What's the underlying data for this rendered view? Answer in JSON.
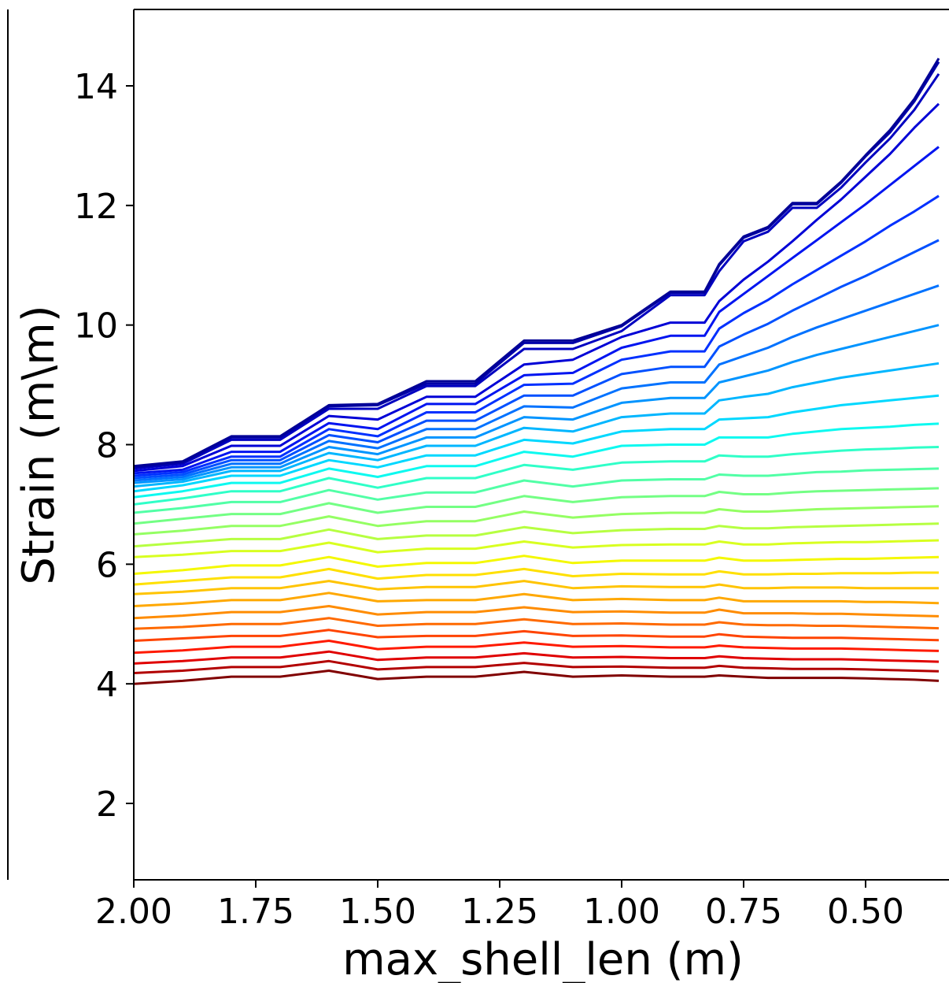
{
  "chart_data": {
    "type": "line",
    "title": "",
    "xlabel": "max_shell_len (m)",
    "ylabel": "Strain (m\\m)",
    "x_inverted": true,
    "xlim": [
      2.0,
      0.33
    ],
    "ylim": [
      0.85,
      15.3
    ],
    "xticks": [
      2.0,
      1.75,
      1.5,
      1.25,
      1.0,
      0.75,
      0.5
    ],
    "xtick_labels": [
      "2.00",
      "1.75",
      "1.50",
      "1.25",
      "1.00",
      "0.75",
      "0.50"
    ],
    "yticks": [
      2,
      4,
      6,
      8,
      10,
      12,
      14
    ],
    "ytick_labels": [
      "2",
      "4",
      "6",
      "8",
      "10",
      "12",
      "14"
    ],
    "grid": false,
    "legend": "none",
    "colormap": "jet",
    "x": [
      2.0,
      1.9,
      1.8,
      1.7,
      1.6,
      1.5,
      1.4,
      1.3,
      1.2,
      1.1,
      1.0,
      0.9,
      0.83,
      0.8,
      0.75,
      0.7,
      0.65,
      0.6,
      0.55,
      0.5,
      0.45,
      0.4,
      0.35
    ],
    "series": [
      {
        "color": "#800000",
        "values": [
          4.0,
          4.05,
          4.12,
          4.12,
          4.22,
          4.08,
          4.12,
          4.12,
          4.2,
          4.12,
          4.14,
          4.12,
          4.12,
          4.14,
          4.12,
          4.1,
          4.1,
          4.1,
          4.1,
          4.09,
          4.08,
          4.07,
          4.05
        ]
      },
      {
        "color": "#b20000",
        "values": [
          4.18,
          4.22,
          4.28,
          4.28,
          4.38,
          4.24,
          4.28,
          4.28,
          4.35,
          4.28,
          4.29,
          4.27,
          4.27,
          4.3,
          4.27,
          4.26,
          4.25,
          4.25,
          4.25,
          4.24,
          4.23,
          4.22,
          4.21
        ]
      },
      {
        "color": "#e00000",
        "values": [
          4.34,
          4.38,
          4.44,
          4.44,
          4.54,
          4.4,
          4.44,
          4.44,
          4.51,
          4.44,
          4.45,
          4.43,
          4.43,
          4.46,
          4.43,
          4.42,
          4.41,
          4.41,
          4.41,
          4.4,
          4.39,
          4.38,
          4.37
        ]
      },
      {
        "color": "#ff1a00",
        "values": [
          4.52,
          4.56,
          4.62,
          4.62,
          4.72,
          4.58,
          4.62,
          4.62,
          4.69,
          4.62,
          4.63,
          4.61,
          4.61,
          4.64,
          4.61,
          4.6,
          4.59,
          4.59,
          4.59,
          4.58,
          4.57,
          4.56,
          4.55
        ]
      },
      {
        "color": "#ff4400",
        "values": [
          4.72,
          4.76,
          4.8,
          4.8,
          4.9,
          4.78,
          4.8,
          4.8,
          4.88,
          4.8,
          4.81,
          4.79,
          4.79,
          4.83,
          4.79,
          4.78,
          4.77,
          4.77,
          4.77,
          4.76,
          4.75,
          4.74,
          4.73
        ]
      },
      {
        "color": "#ff6a00",
        "values": [
          4.92,
          4.95,
          5.0,
          5.0,
          5.1,
          4.97,
          5.0,
          5.0,
          5.08,
          5.0,
          5.01,
          4.99,
          4.99,
          5.03,
          4.99,
          4.98,
          4.98,
          4.97,
          4.97,
          4.96,
          4.95,
          4.94,
          4.93
        ]
      },
      {
        "color": "#ff8c00",
        "values": [
          5.1,
          5.14,
          5.2,
          5.2,
          5.3,
          5.16,
          5.2,
          5.2,
          5.28,
          5.2,
          5.21,
          5.19,
          5.19,
          5.24,
          5.18,
          5.18,
          5.18,
          5.17,
          5.17,
          5.16,
          5.15,
          5.14,
          5.13
        ]
      },
      {
        "color": "#ffa800",
        "values": [
          5.3,
          5.34,
          5.4,
          5.4,
          5.52,
          5.38,
          5.4,
          5.4,
          5.5,
          5.4,
          5.42,
          5.4,
          5.4,
          5.44,
          5.38,
          5.38,
          5.38,
          5.38,
          5.38,
          5.37,
          5.37,
          5.36,
          5.35
        ]
      },
      {
        "color": "#ffc400",
        "values": [
          5.5,
          5.54,
          5.6,
          5.6,
          5.72,
          5.58,
          5.62,
          5.62,
          5.72,
          5.6,
          5.63,
          5.62,
          5.62,
          5.66,
          5.6,
          5.6,
          5.61,
          5.61,
          5.61,
          5.6,
          5.6,
          5.6,
          5.6
        ]
      },
      {
        "color": "#ffe000",
        "values": [
          5.66,
          5.72,
          5.78,
          5.78,
          5.92,
          5.76,
          5.82,
          5.82,
          5.92,
          5.8,
          5.84,
          5.83,
          5.83,
          5.88,
          5.83,
          5.83,
          5.84,
          5.84,
          5.85,
          5.85,
          5.85,
          5.86,
          5.86
        ]
      },
      {
        "color": "#f4f800",
        "values": [
          5.84,
          5.9,
          5.98,
          5.98,
          6.12,
          5.96,
          6.02,
          6.02,
          6.14,
          6.02,
          6.06,
          6.06,
          6.06,
          6.11,
          6.06,
          6.06,
          6.07,
          6.08,
          6.09,
          6.09,
          6.1,
          6.11,
          6.12
        ]
      },
      {
        "color": "#d8ff20",
        "values": [
          6.12,
          6.16,
          6.22,
          6.22,
          6.36,
          6.2,
          6.26,
          6.26,
          6.38,
          6.28,
          6.32,
          6.33,
          6.33,
          6.38,
          6.33,
          6.33,
          6.35,
          6.36,
          6.37,
          6.37,
          6.38,
          6.39,
          6.4
        ]
      },
      {
        "color": "#b6ff41",
        "values": [
          6.3,
          6.36,
          6.42,
          6.42,
          6.58,
          6.42,
          6.48,
          6.48,
          6.62,
          6.52,
          6.57,
          6.59,
          6.59,
          6.64,
          6.6,
          6.6,
          6.62,
          6.63,
          6.64,
          6.65,
          6.66,
          6.67,
          6.68
        ]
      },
      {
        "color": "#94ff63",
        "values": [
          6.5,
          6.56,
          6.64,
          6.64,
          6.8,
          6.64,
          6.72,
          6.72,
          6.88,
          6.78,
          6.84,
          6.86,
          6.86,
          6.92,
          6.88,
          6.88,
          6.9,
          6.92,
          6.93,
          6.94,
          6.95,
          6.96,
          6.97
        ]
      },
      {
        "color": "#73ff84",
        "values": [
          6.68,
          6.76,
          6.84,
          6.84,
          7.02,
          6.86,
          6.96,
          6.96,
          7.14,
          7.04,
          7.12,
          7.14,
          7.14,
          7.21,
          7.17,
          7.17,
          7.2,
          7.22,
          7.23,
          7.24,
          7.25,
          7.26,
          7.27
        ]
      },
      {
        "color": "#51ffa6",
        "values": [
          6.86,
          6.94,
          7.04,
          7.04,
          7.24,
          7.08,
          7.2,
          7.2,
          7.4,
          7.3,
          7.4,
          7.42,
          7.42,
          7.5,
          7.48,
          7.48,
          7.51,
          7.54,
          7.55,
          7.57,
          7.58,
          7.59,
          7.6
        ]
      },
      {
        "color": "#2fffc8",
        "values": [
          7.0,
          7.1,
          7.22,
          7.22,
          7.44,
          7.28,
          7.44,
          7.44,
          7.66,
          7.58,
          7.7,
          7.72,
          7.72,
          7.82,
          7.8,
          7.8,
          7.84,
          7.87,
          7.9,
          7.92,
          7.93,
          7.95,
          7.96
        ]
      },
      {
        "color": "#0df9f0",
        "values": [
          7.12,
          7.22,
          7.36,
          7.36,
          7.6,
          7.46,
          7.64,
          7.64,
          7.88,
          7.8,
          7.98,
          8.0,
          8.0,
          8.12,
          8.12,
          8.12,
          8.18,
          8.22,
          8.26,
          8.28,
          8.3,
          8.33,
          8.35
        ]
      },
      {
        "color": "#00d8ff",
        "values": [
          7.22,
          7.32,
          7.48,
          7.48,
          7.74,
          7.62,
          7.82,
          7.82,
          8.08,
          8.02,
          8.22,
          8.26,
          8.26,
          8.42,
          8.44,
          8.46,
          8.54,
          8.6,
          8.66,
          8.7,
          8.74,
          8.78,
          8.82
        ]
      },
      {
        "color": "#00b6ff",
        "values": [
          7.3,
          7.38,
          7.56,
          7.56,
          7.86,
          7.74,
          7.98,
          7.98,
          8.28,
          8.22,
          8.46,
          8.52,
          8.52,
          8.74,
          8.8,
          8.85,
          8.96,
          9.04,
          9.12,
          9.18,
          9.24,
          9.3,
          9.36
        ]
      },
      {
        "color": "#0094ff",
        "values": [
          7.36,
          7.42,
          7.62,
          7.62,
          7.96,
          7.84,
          8.12,
          8.12,
          8.46,
          8.42,
          8.7,
          8.78,
          8.78,
          9.04,
          9.14,
          9.24,
          9.38,
          9.5,
          9.6,
          9.7,
          9.8,
          9.9,
          10.0
        ]
      },
      {
        "color": "#0072ff",
        "values": [
          7.4,
          7.46,
          7.68,
          7.68,
          8.06,
          7.94,
          8.26,
          8.26,
          8.64,
          8.62,
          8.94,
          9.04,
          9.04,
          9.34,
          9.48,
          9.62,
          9.8,
          9.96,
          10.1,
          10.24,
          10.38,
          10.52,
          10.66
        ]
      },
      {
        "color": "#0050ff",
        "values": [
          7.44,
          7.5,
          7.74,
          7.74,
          8.16,
          8.04,
          8.4,
          8.4,
          8.82,
          8.82,
          9.18,
          9.3,
          9.3,
          9.64,
          9.84,
          10.02,
          10.24,
          10.44,
          10.64,
          10.82,
          11.02,
          11.22,
          11.42
        ]
      },
      {
        "color": "#0030ff",
        "values": [
          7.48,
          7.54,
          7.8,
          7.8,
          8.26,
          8.14,
          8.54,
          8.54,
          9.0,
          9.02,
          9.42,
          9.56,
          9.56,
          9.94,
          10.2,
          10.42,
          10.68,
          10.92,
          11.16,
          11.4,
          11.66,
          11.9,
          12.16
        ]
      },
      {
        "color": "#0014f0",
        "values": [
          7.52,
          7.58,
          7.88,
          7.88,
          8.36,
          8.26,
          8.68,
          8.68,
          9.16,
          9.2,
          9.62,
          9.82,
          9.82,
          10.22,
          10.52,
          10.82,
          11.12,
          11.42,
          11.72,
          12.02,
          12.34,
          12.66,
          12.98
        ]
      },
      {
        "color": "#0000d6",
        "values": [
          7.56,
          7.64,
          7.98,
          7.98,
          8.48,
          8.42,
          8.8,
          8.8,
          9.34,
          9.42,
          9.8,
          10.04,
          10.04,
          10.4,
          10.76,
          11.06,
          11.4,
          11.76,
          12.1,
          12.48,
          12.86,
          13.3,
          13.7
        ]
      },
      {
        "color": "#0000c0",
        "values": [
          7.6,
          7.68,
          8.08,
          8.08,
          8.6,
          8.6,
          8.98,
          8.98,
          9.6,
          9.6,
          9.9,
          10.5,
          10.5,
          10.9,
          11.4,
          11.56,
          11.96,
          11.96,
          12.3,
          12.72,
          13.12,
          13.6,
          14.2
        ]
      },
      {
        "color": "#0000aa",
        "values": [
          7.62,
          7.7,
          8.12,
          8.12,
          8.64,
          8.66,
          9.02,
          9.02,
          9.7,
          9.7,
          9.98,
          10.54,
          10.54,
          11.0,
          11.46,
          11.62,
          12.02,
          12.02,
          12.38,
          12.82,
          13.22,
          13.74,
          14.4
        ]
      },
      {
        "color": "#000096",
        "values": [
          7.64,
          7.72,
          8.14,
          8.14,
          8.66,
          8.68,
          9.06,
          9.06,
          9.74,
          9.74,
          10.0,
          10.56,
          10.56,
          11.02,
          11.48,
          11.64,
          12.04,
          12.04,
          12.4,
          12.84,
          13.26,
          13.78,
          14.46
        ]
      }
    ]
  }
}
